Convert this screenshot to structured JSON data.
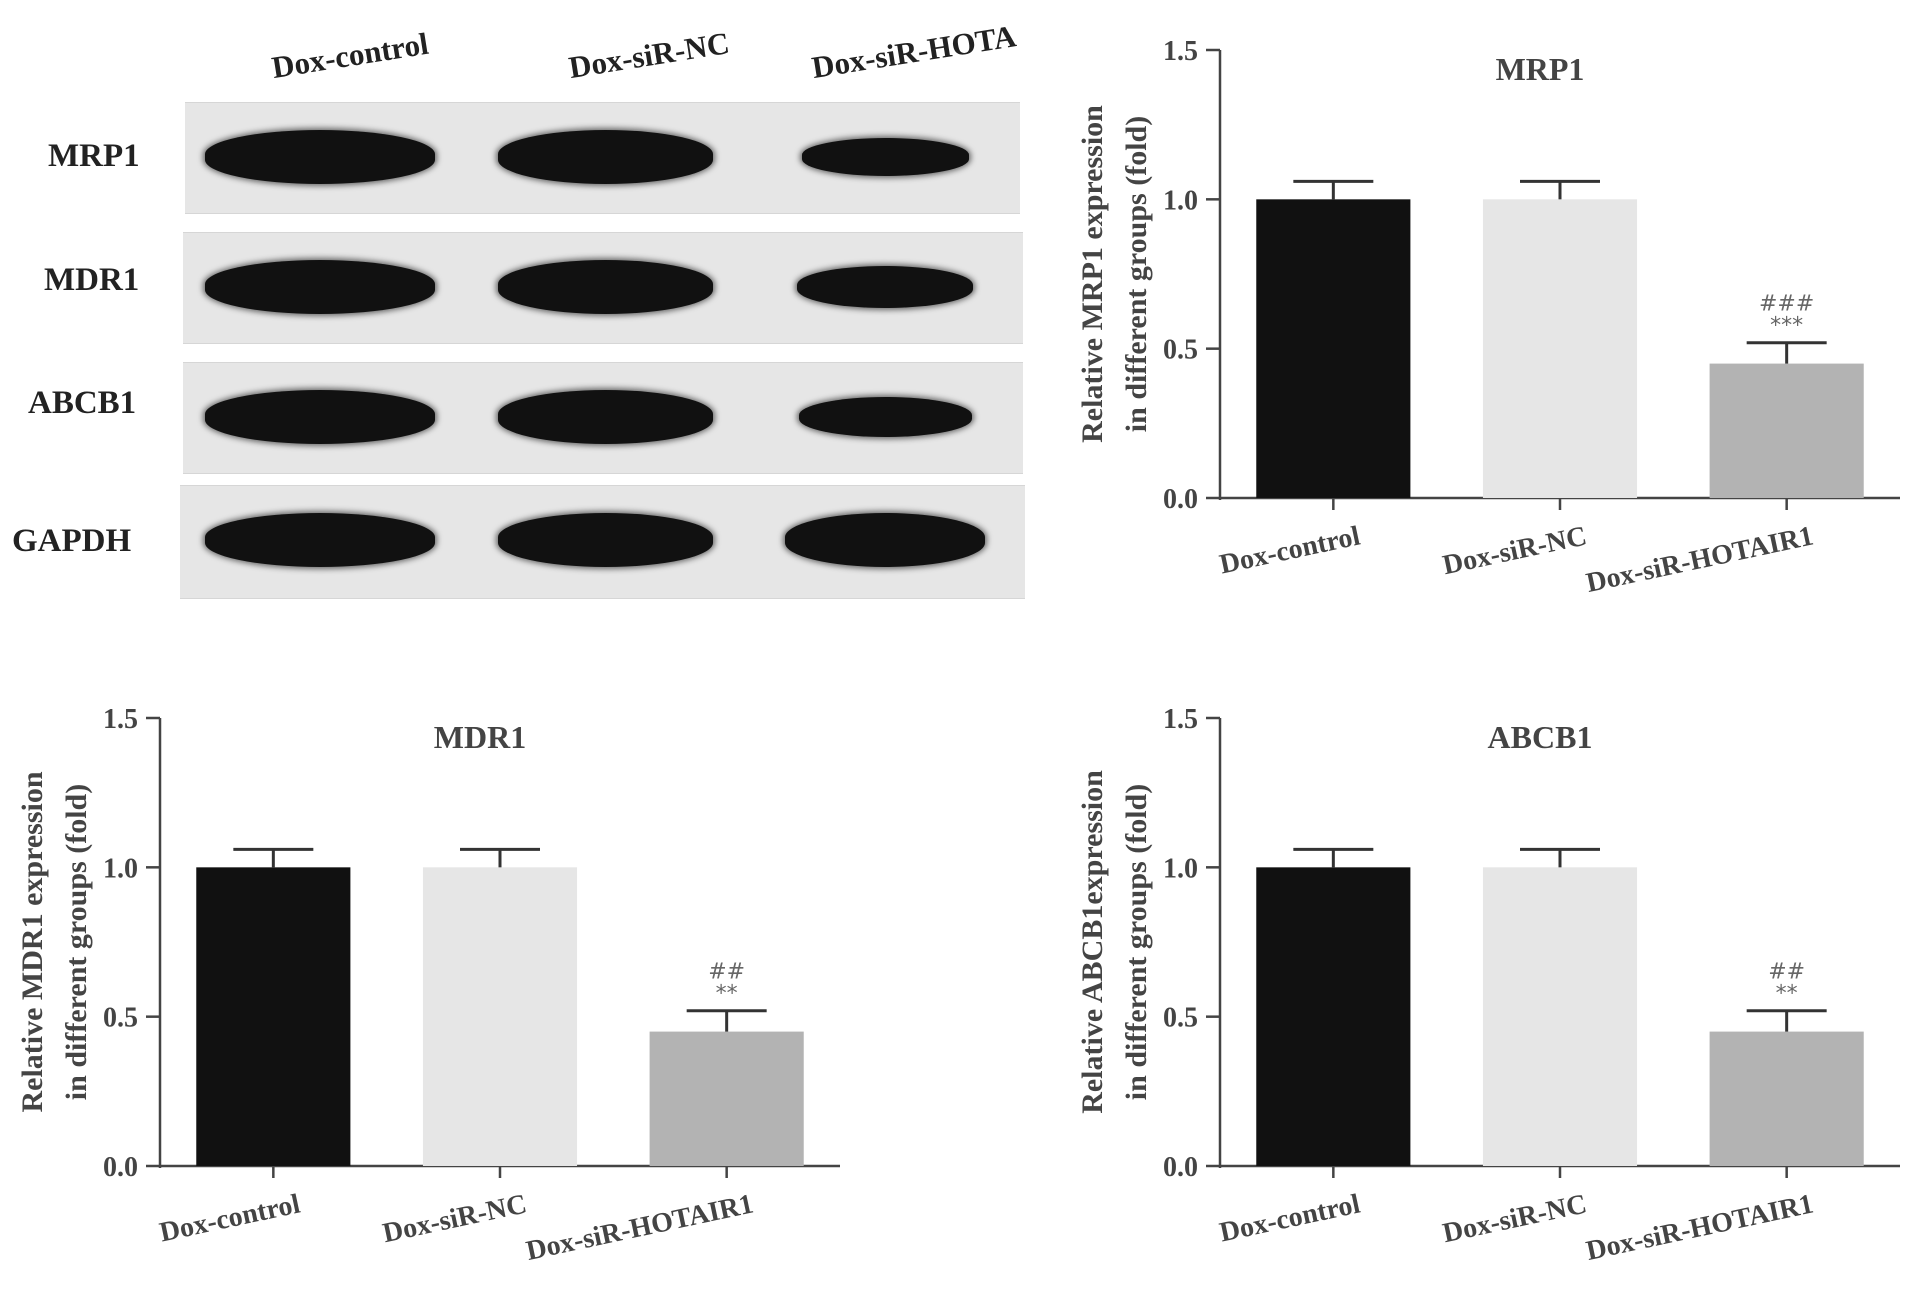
{
  "blot": {
    "lane_headers": [
      "Dox-control",
      "Dox-siR-NC",
      "Dox-siR-HOTA"
    ],
    "rows": [
      {
        "label": "MRP1",
        "bands": [
          1.0,
          1.0,
          0.45
        ]
      },
      {
        "label": "MDR1",
        "bands": [
          1.0,
          1.0,
          0.6
        ]
      },
      {
        "label": "ABCB1",
        "bands": [
          1.0,
          1.0,
          0.55
        ]
      },
      {
        "label": "GAPDH",
        "bands": [
          1.0,
          1.0,
          1.0
        ]
      }
    ]
  },
  "chart_data": [
    {
      "type": "bar",
      "title": "MRP1",
      "ylabel_lines": [
        "Relative MRP1 expression",
        "in different groups (fold)"
      ],
      "categories": [
        "Dox-control",
        "Dox-siR-NC",
        "Dox-siR-HOTAIR1"
      ],
      "values": [
        1.0,
        1.0,
        0.45
      ],
      "errors": [
        0.06,
        0.06,
        0.07
      ],
      "annotations": [
        [],
        [],
        [
          "###",
          "***"
        ]
      ],
      "colors": [
        "#111111",
        "#e6e6e6",
        "#b3b3b3"
      ],
      "ylim": [
        0,
        1.5
      ],
      "yticks": [
        "0.0",
        "0.5",
        "1.0",
        "1.5"
      ]
    },
    {
      "type": "bar",
      "title": "MDR1",
      "ylabel_lines": [
        "Relative MDR1 expression",
        "in different groups (fold)"
      ],
      "categories": [
        "Dox-control",
        "Dox-siR-NC",
        "Dox-siR-HOTAIR1"
      ],
      "values": [
        1.0,
        1.0,
        0.45
      ],
      "errors": [
        0.06,
        0.06,
        0.07
      ],
      "annotations": [
        [],
        [],
        [
          "##",
          "**"
        ]
      ],
      "colors": [
        "#111111",
        "#e6e6e6",
        "#b3b3b3"
      ],
      "ylim": [
        0,
        1.5
      ],
      "yticks": [
        "0.0",
        "0.5",
        "1.0",
        "1.5"
      ]
    },
    {
      "type": "bar",
      "title": "ABCB1",
      "ylabel_lines": [
        "Relative ABCB1expression",
        "in different groups (fold)"
      ],
      "categories": [
        "Dox-control",
        "Dox-siR-NC",
        "Dox-siR-HOTAIR1"
      ],
      "values": [
        1.0,
        1.0,
        0.45
      ],
      "errors": [
        0.06,
        0.06,
        0.07
      ],
      "annotations": [
        [],
        [],
        [
          "##",
          "**"
        ]
      ],
      "colors": [
        "#111111",
        "#e6e6e6",
        "#b3b3b3"
      ],
      "ylim": [
        0,
        1.5
      ],
      "yticks": [
        "0.0",
        "0.5",
        "1.0",
        "1.5"
      ]
    }
  ]
}
